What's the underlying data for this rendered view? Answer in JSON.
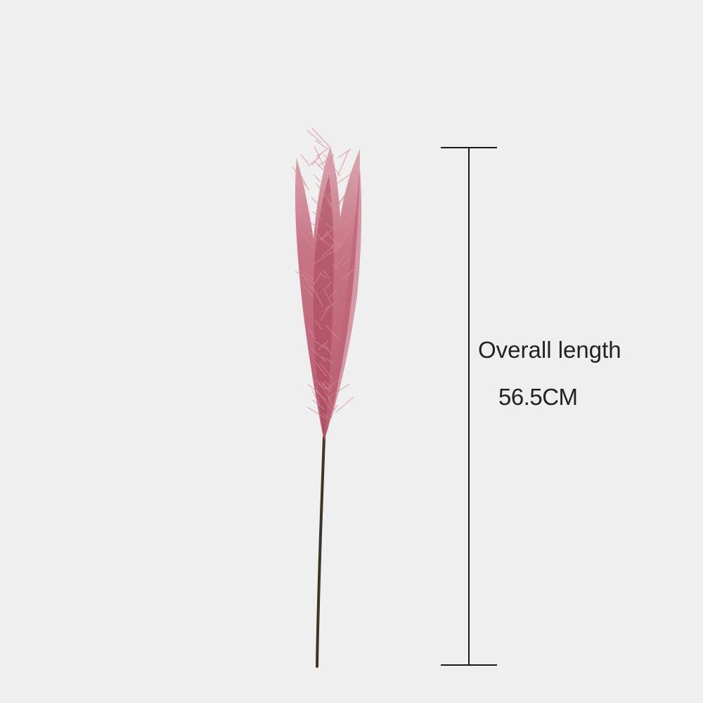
{
  "measurement": {
    "title": "Overall length",
    "value": "56.5CM"
  },
  "colors": {
    "background": "#efefef",
    "plume": "#b8566a",
    "plume_light": "#d98a99",
    "stem": "#3d3528",
    "line": "#1a1a1a",
    "text": "#222222"
  },
  "image": {
    "subject": "pampas-grass-stem-icon"
  }
}
